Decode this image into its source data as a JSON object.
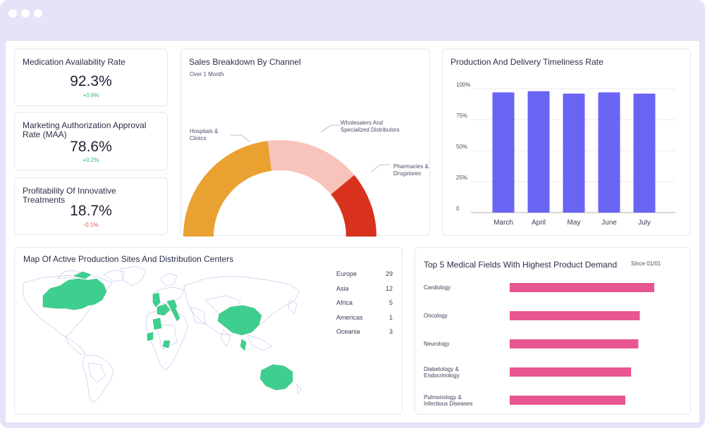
{
  "kpis": [
    {
      "title": "Medication Availability Rate",
      "value": "92.3%",
      "delta": "+0.9%"
    },
    {
      "title": "Marketing Authorization Approval Rate (MAA)",
      "value": "78.6%",
      "delta": "+0.2%"
    },
    {
      "title": "Profitability Of Innovative Treatments",
      "value": "18.7%",
      "delta": "-0.1%"
    }
  ],
  "sales": {
    "title": "Sales Breakdown By Channel",
    "subtitle": "Over 1 Month",
    "labels": {
      "hospitals": "Hospitals & Clinics",
      "wholesalers": "Wholesalers And Specialized Distributors",
      "pharmacies": "Pharmacies & Drugstores"
    }
  },
  "production": {
    "title": "Production And Delivery Timeliness Rate"
  },
  "map": {
    "title": "Map Of Active Production Sites And Distribution Centers",
    "regions": [
      {
        "name": "Europe",
        "count": "29"
      },
      {
        "name": "Asia",
        "count": "12"
      },
      {
        "name": "Africa",
        "count": "5"
      },
      {
        "name": "Americas",
        "count": "1"
      },
      {
        "name": "Oceania",
        "count": "3"
      }
    ]
  },
  "fields": {
    "title": "Top 5 Medical Fields With Highest Product Demand",
    "since": "Since 01/01"
  },
  "colors": {
    "accent_purple": "#6a64f5",
    "bar_pink": "#e8558f",
    "donut_orange": "#e9a131",
    "donut_pink": "#f7c3bb",
    "donut_red": "#d8321e",
    "map_green": "#3ecf8e",
    "positive": "#2fbf71",
    "negative": "#e8514a"
  },
  "chart_data": [
    {
      "type": "pie",
      "title": "Sales Breakdown By Channel",
      "subtitle": "Over 1 Month",
      "categories": [
        "Hospitals & Clinics",
        "Wholesalers And Specialized Distributors",
        "Pharmacies & Drugstores"
      ],
      "values": [
        46,
        32,
        22
      ],
      "style": "half-donut"
    },
    {
      "type": "bar",
      "title": "Production And Delivery Timeliness Rate",
      "categories": [
        "March",
        "April",
        "May",
        "June",
        "July"
      ],
      "values": [
        97,
        98,
        96,
        97,
        96
      ],
      "ylim": [
        0,
        100
      ],
      "yticks": [
        "0",
        "25%",
        "50%",
        "75%",
        "100%"
      ],
      "grid": true
    },
    {
      "type": "bar",
      "orientation": "horizontal",
      "title": "Top 5 Medical Fields With Highest Product Demand",
      "subtitle": "Since 01/01",
      "categories": [
        "Cardiology",
        "Oncology",
        "Neurology",
        "Diabetology & Endocrinology",
        "Pulmonology & Infectious Diseases"
      ],
      "values": [
        100,
        90,
        89,
        84,
        80
      ]
    }
  ]
}
